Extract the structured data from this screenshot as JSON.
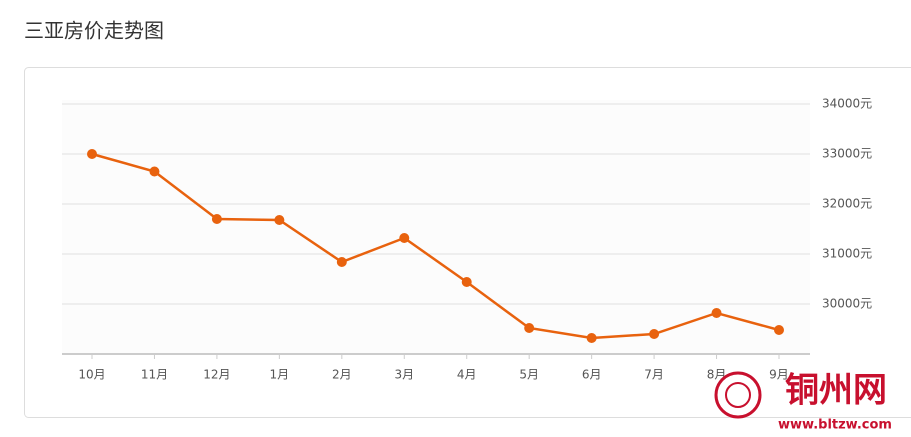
{
  "chart_data": {
    "type": "line",
    "title": "三亚房价走势图",
    "categories": [
      "10月",
      "11月",
      "12月",
      "1月",
      "2月",
      "3月",
      "4月",
      "5月",
      "6月",
      "7月",
      "8月",
      "9月"
    ],
    "series": [
      {
        "color": "#e8620e",
        "values": [
          33000,
          32650,
          31700,
          31680,
          30840,
          31320,
          30440,
          29520,
          29320,
          29400,
          29820,
          29480
        ]
      }
    ],
    "ylim": [
      29000,
      34000
    ],
    "yticks": [
      {
        "value": 30000,
        "label": "30000元"
      },
      {
        "value": 31000,
        "label": "31000元"
      },
      {
        "value": 32000,
        "label": "32000元"
      },
      {
        "value": 33000,
        "label": "33000元"
      },
      {
        "value": 34000,
        "label": "34000元"
      }
    ],
    "grid": true,
    "watermark": {
      "name": "铜州网",
      "url": "www.bltzw.com"
    }
  }
}
